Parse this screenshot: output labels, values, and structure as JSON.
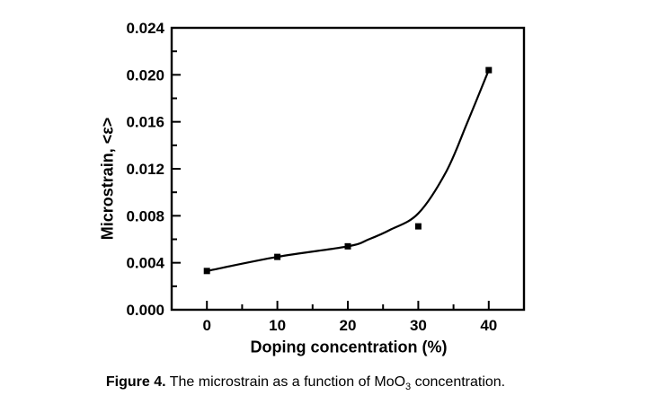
{
  "figure": {
    "caption": {
      "label": "Figure 4.",
      "text_before_sub": " The microstrain as a function of MoO",
      "subscript": "3",
      "text_after_sub": " concentration."
    }
  },
  "chart_data": {
    "type": "scatter",
    "title": "",
    "xlabel": "Doping concentration (%)",
    "ylabel": "Microstrain, <ε>",
    "x": [
      0,
      10,
      20,
      30,
      40
    ],
    "y": [
      0.0033,
      0.0045,
      0.0054,
      0.0071,
      0.0204
    ],
    "marker": "filled-square",
    "fit_curve_points": [
      [
        0,
        0.0033
      ],
      [
        10,
        0.0045
      ],
      [
        20,
        0.0054
      ],
      [
        23,
        0.006
      ],
      [
        26,
        0.0068
      ],
      [
        30,
        0.0082
      ],
      [
        34,
        0.0118
      ],
      [
        37,
        0.016
      ],
      [
        40,
        0.0204
      ]
    ],
    "xlim": [
      -5,
      45
    ],
    "ylim": [
      0,
      0.024
    ],
    "xticks": {
      "major": [
        0,
        10,
        20,
        30,
        40
      ],
      "minor": [
        5,
        15,
        25,
        35
      ],
      "labels": [
        "0",
        "10",
        "20",
        "30",
        "40"
      ]
    },
    "yticks": {
      "major": [
        0,
        0.004,
        0.008,
        0.012,
        0.016,
        0.02,
        0.024
      ],
      "minor": [
        0.002,
        0.006,
        0.01,
        0.014,
        0.018,
        0.022
      ],
      "labels": [
        "0.000",
        "0.004",
        "0.008",
        "0.012",
        "0.016",
        "0.020",
        "0.024"
      ]
    },
    "grid": false,
    "legend": false,
    "colors": {
      "line": "#000000",
      "marker": "#000000",
      "axis": "#000000",
      "text": "#000000",
      "background": "#ffffff"
    }
  }
}
